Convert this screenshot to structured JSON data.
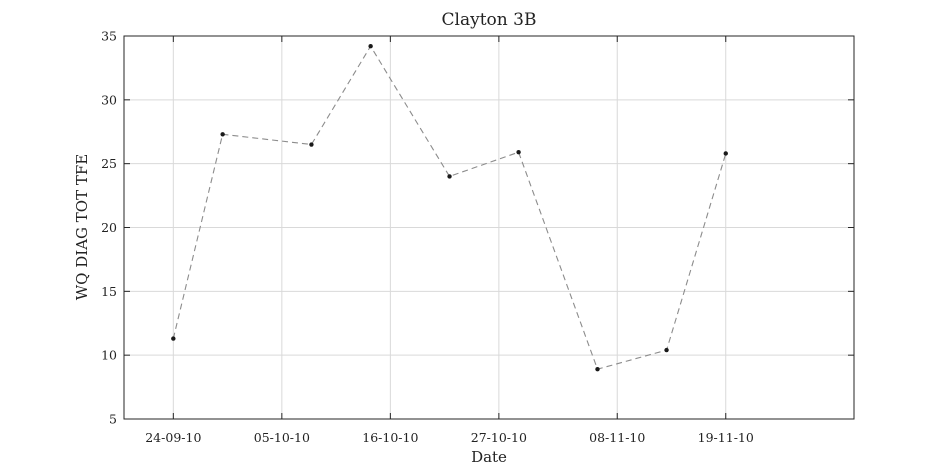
{
  "chart_data": {
    "type": "line",
    "title": "Clayton 3B",
    "xlabel": "Date",
    "ylabel": "WQ DIAG TOT TFE",
    "x_axis_type": "date",
    "xlim": [
      "2010-09-19",
      "2010-12-02"
    ],
    "ylim": [
      5,
      35
    ],
    "x_ticks": [
      {
        "date": "2010-09-24",
        "label": "24-09-10"
      },
      {
        "date": "2010-10-05",
        "label": "05-10-10"
      },
      {
        "date": "2010-10-16",
        "label": "16-10-10"
      },
      {
        "date": "2010-10-27",
        "label": "27-10-10"
      },
      {
        "date": "2010-11-08",
        "label": "08-11-10"
      },
      {
        "date": "2010-11-19",
        "label": "19-11-10"
      }
    ],
    "y_ticks": [
      5,
      10,
      15,
      20,
      25,
      30,
      35
    ],
    "grid": true,
    "series": [
      {
        "color": "#8c8c8c",
        "marker_color": "#1a1a1a",
        "line_style": "dashed",
        "points": [
          {
            "x": "2010-09-24",
            "y": 11.3
          },
          {
            "x": "2010-09-29",
            "y": 27.3
          },
          {
            "x": "2010-10-08",
            "y": 26.5
          },
          {
            "x": "2010-10-14",
            "y": 34.2
          },
          {
            "x": "2010-10-22",
            "y": 24.0
          },
          {
            "x": "2010-10-29",
            "y": 25.9
          },
          {
            "x": "2010-11-06",
            "y": 8.9
          },
          {
            "x": "2010-11-13",
            "y": 10.4
          },
          {
            "x": "2010-11-19",
            "y": 25.8
          }
        ]
      }
    ]
  }
}
